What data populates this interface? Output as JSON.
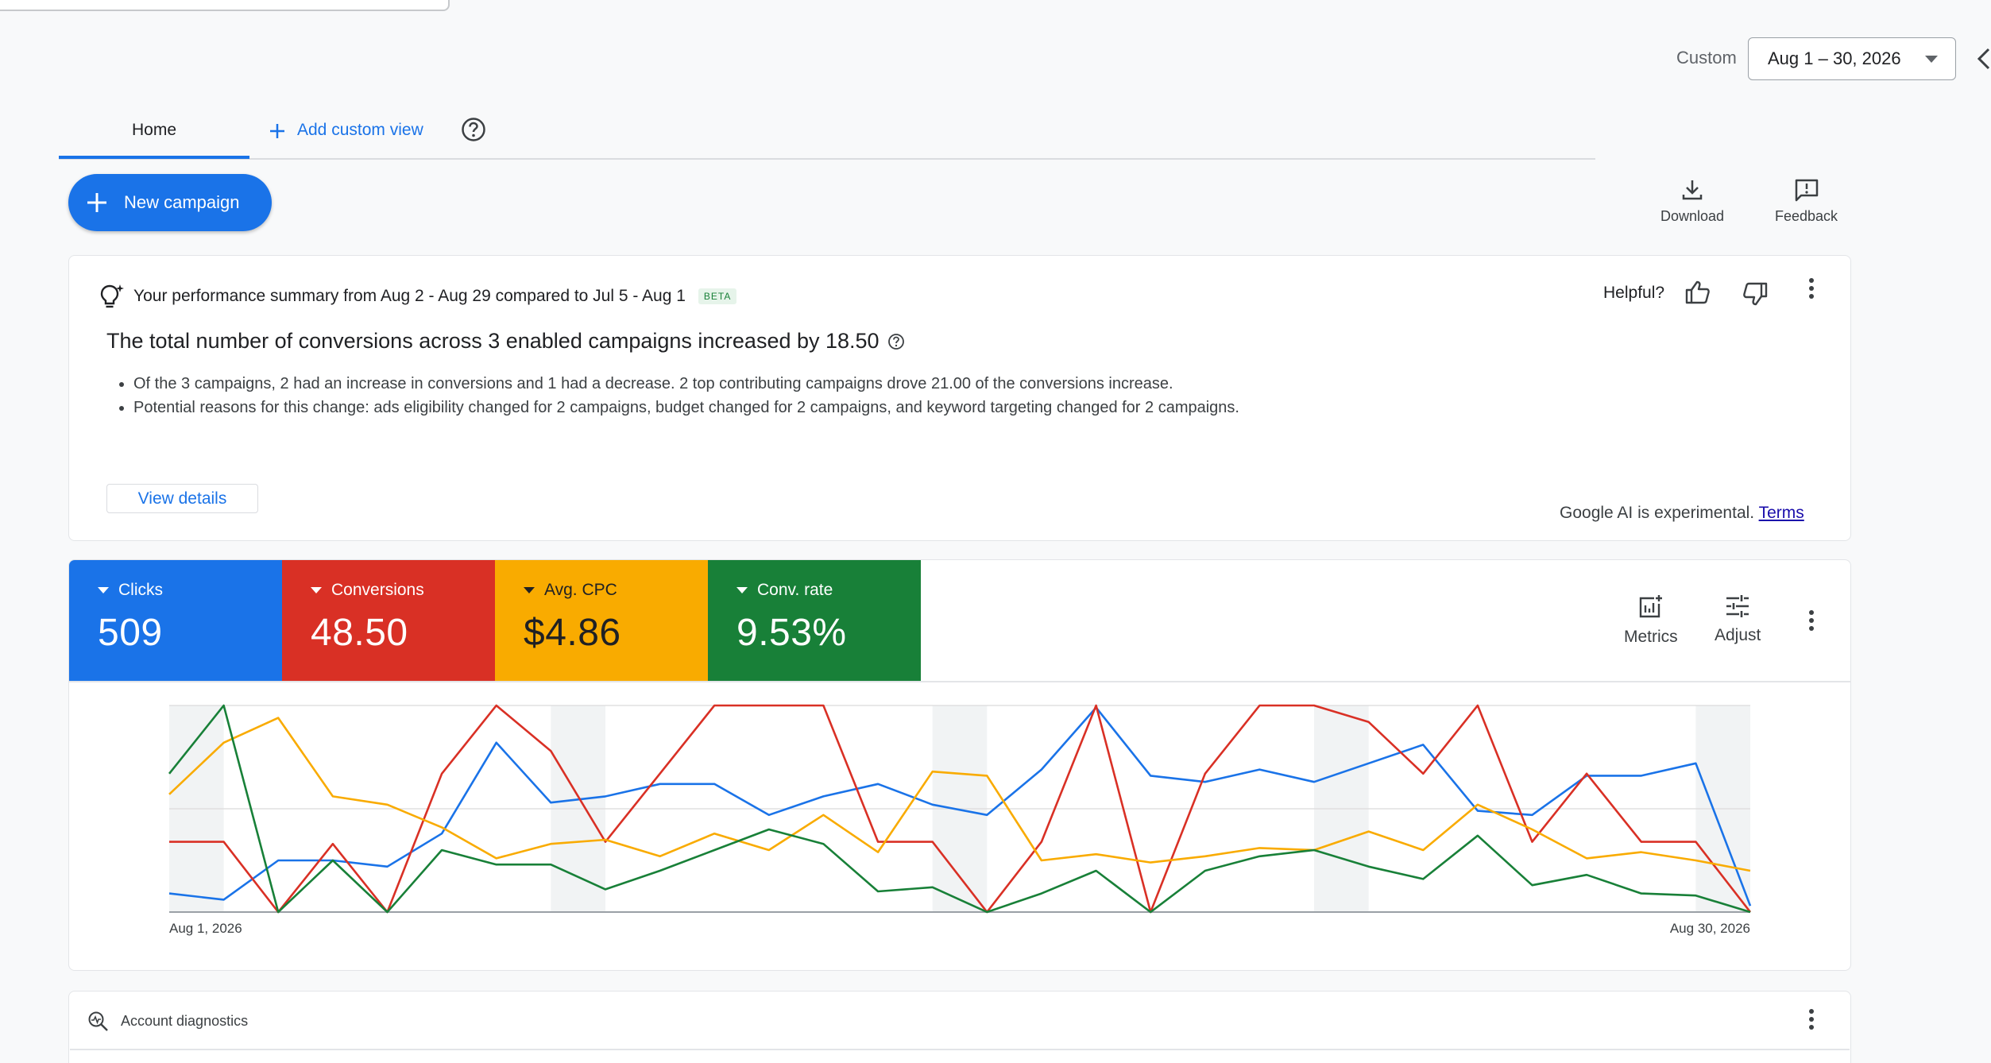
{
  "date_range": {
    "label": "Custom",
    "value": "Aug 1 – 30, 2026"
  },
  "tabs": [
    {
      "label": "Home"
    },
    {
      "label": "Add custom view"
    }
  ],
  "toolbar": {
    "new_campaign": "New campaign",
    "download": "Download",
    "feedback": "Feedback"
  },
  "summary": {
    "heading": "Your performance summary from Aug 2 - Aug 29 compared to Jul 5 - Aug 1",
    "badge": "BETA",
    "helpful": "Helpful?",
    "title": "The total number of conversions across 3 enabled campaigns increased by 18.50",
    "bullets": [
      "Of the 3 campaigns, 2 had an increase in conversions and 1 had a decrease. 2 top contributing campaigns drove 21.00 of the conversions increase.",
      "Potential reasons for this change: ads eligibility changed for 2 campaigns, budget changed for 2 campaigns, and keyword targeting changed for 2 campaigns."
    ],
    "view_details": "View details",
    "ai_note": "Google AI is experimental.",
    "terms": "Terms"
  },
  "metrics": [
    {
      "label": "Clicks",
      "value": "509",
      "color": "#1a73e8"
    },
    {
      "label": "Conversions",
      "value": "48.50",
      "color": "#d93025"
    },
    {
      "label": "Avg. CPC",
      "value": "$4.86",
      "color": "#f9ab00"
    },
    {
      "label": "Conv. rate",
      "value": "9.53%",
      "color": "#188038"
    }
  ],
  "metric_tools": {
    "metrics": "Metrics",
    "adjust": "Adjust"
  },
  "chart_data": {
    "type": "line",
    "x": [
      "Aug 1",
      "Aug 2",
      "Aug 3",
      "Aug 4",
      "Aug 5",
      "Aug 6",
      "Aug 7",
      "Aug 8",
      "Aug 9",
      "Aug 10",
      "Aug 11",
      "Aug 12",
      "Aug 13",
      "Aug 14",
      "Aug 15",
      "Aug 16",
      "Aug 17",
      "Aug 18",
      "Aug 19",
      "Aug 20",
      "Aug 21",
      "Aug 22",
      "Aug 23",
      "Aug 24",
      "Aug 25",
      "Aug 26",
      "Aug 27",
      "Aug 28",
      "Aug 29",
      "Aug 30"
    ],
    "x_tick_labels": [
      "Aug 1, 2026",
      "Aug 30, 2026"
    ],
    "weekend_bands": [
      [
        0,
        1
      ],
      [
        7,
        8
      ],
      [
        14,
        15
      ],
      [
        21,
        22
      ],
      [
        28,
        29
      ]
    ],
    "ylim": [
      0,
      1
    ],
    "grid": "horizontal",
    "series": [
      {
        "color": "#1a73e8",
        "values": [
          0.09,
          0.06,
          0.25,
          0.25,
          0.22,
          0.38,
          0.82,
          0.53,
          0.56,
          0.62,
          0.62,
          0.47,
          0.56,
          0.62,
          0.52,
          0.47,
          0.69,
          0.99,
          0.66,
          0.63,
          0.69,
          0.63,
          0.72,
          0.81,
          0.49,
          0.47,
          0.66,
          0.66,
          0.72,
          0.03
        ]
      },
      {
        "color": "#d93025",
        "values": [
          0.34,
          0.34,
          0.0,
          0.33,
          0.0,
          0.67,
          1.0,
          0.78,
          0.34,
          0.67,
          1.0,
          1.0,
          1.0,
          0.34,
          0.34,
          0.0,
          0.34,
          1.0,
          0.0,
          0.67,
          1.0,
          1.0,
          0.92,
          0.67,
          1.0,
          0.34,
          0.67,
          0.34,
          0.34,
          0.0
        ]
      },
      {
        "color": "#f9ab00",
        "values": [
          0.57,
          0.82,
          0.94,
          0.56,
          0.52,
          0.41,
          0.26,
          0.33,
          0.35,
          0.27,
          0.38,
          0.3,
          0.47,
          0.29,
          0.68,
          0.66,
          0.25,
          0.28,
          0.24,
          0.27,
          0.31,
          0.3,
          0.39,
          0.3,
          0.52,
          0.4,
          0.26,
          0.29,
          0.25,
          0.2
        ]
      },
      {
        "color": "#188038",
        "values": [
          0.67,
          1.0,
          0.0,
          0.25,
          0.0,
          0.3,
          0.23,
          0.23,
          0.11,
          0.2,
          0.3,
          0.4,
          0.33,
          0.1,
          0.12,
          0.0,
          0.09,
          0.2,
          0.0,
          0.2,
          0.27,
          0.3,
          0.22,
          0.16,
          0.37,
          0.13,
          0.18,
          0.09,
          0.08,
          0.0
        ]
      }
    ]
  },
  "diagnostics": {
    "title": "Account diagnostics"
  }
}
